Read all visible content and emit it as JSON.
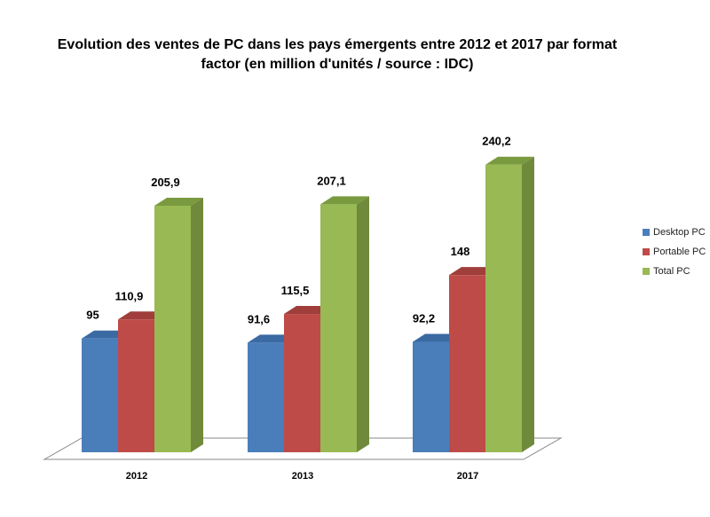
{
  "chart_data": {
    "type": "bar",
    "title_line1": "Evolution des ventes de PC dans les pays émergents entre 2012 et 2017 par format",
    "title_line2": "factor (en million d'unités / source : IDC)",
    "categories": [
      "2012",
      "2013",
      "2017"
    ],
    "series": [
      {
        "name": "Desktop PC",
        "values": [
          95,
          91.6,
          92.2
        ],
        "labels": [
          "95",
          "91,6",
          "92,2"
        ],
        "color": "#4a7ebb",
        "side": "#3a6496",
        "top": "#3b6aa3"
      },
      {
        "name": "Portable PC",
        "values": [
          110.9,
          115.5,
          148
        ],
        "labels": [
          "110,9",
          "115,5",
          "148"
        ],
        "color": "#be4b48",
        "side": "#983b38",
        "top": "#a03e3b"
      },
      {
        "name": "Total PC",
        "values": [
          205.9,
          207.1,
          240.2
        ],
        "labels": [
          "205,9",
          "207,1",
          "240,2"
        ],
        "color": "#98b954",
        "side": "#6f8a3a",
        "top": "#7a9a3f"
      }
    ],
    "ylim": [
      0,
      260
    ],
    "grid": false,
    "legend_position": "right"
  }
}
